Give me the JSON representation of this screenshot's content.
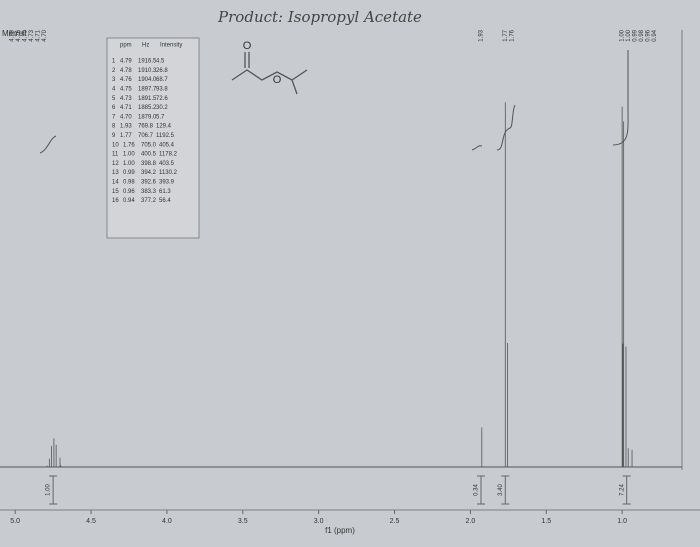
{
  "chart_data": {
    "type": "spectrum",
    "title": "Product: Isopropyl Acetate",
    "sample_label": "Merrell",
    "x_label": "f1 (ppm)",
    "xlim": [
      5.1,
      0.5
    ],
    "ylim": [
      0,
      1200
    ],
    "xticks": [
      {
        "value": 5,
        "label": "5.0"
      },
      4.5,
      {
        "value": 4,
        "label": "4.0"
      },
      3.5,
      {
        "value": 3,
        "label": "3.0"
      },
      2.5,
      {
        "value": 2,
        "label": "2.0"
      },
      1.5,
      {
        "value": 1,
        "label": "1.0"
      }
    ],
    "color": "#555555",
    "x": [
      4.79,
      4.78,
      4.76,
      4.75,
      4.73,
      4.71,
      4.7,
      1.93,
      1.77,
      1.76,
      1.0,
      1.0,
      0.99,
      0.98,
      0.96,
      0.94
    ],
    "values": [
      4.5,
      26.8,
      68.7,
      93.8,
      72.6,
      30.2,
      5.7,
      129.4,
      1192.5,
      405.4,
      1178.2,
      403.5,
      1130.2,
      393.9,
      61.3,
      56.4
    ],
    "peak_labels": [
      {
        "labels": [
          "4.79",
          "4.76",
          "4.75",
          "4.73",
          "4.71",
          "4.70"
        ]
      },
      {
        "labels": [
          "1.93"
        ]
      },
      {
        "labels": [
          "1.77",
          "1.76"
        ]
      },
      {
        "labels": [
          "1.00",
          "1.00",
          "0.99",
          "0.98",
          "0.96",
          "0.94"
        ]
      }
    ],
    "integrals": [
      {
        "label": "1.00",
        "at": 4.75
      },
      {
        "label": "0.34",
        "at": 1.93
      },
      {
        "label": "3.40",
        "at": 1.77
      },
      {
        "label": "7.24",
        "at": 0.97
      }
    ],
    "peak_table": {
      "columns": [
        "ppm",
        "Hz",
        "Intensity"
      ],
      "rows": [
        [
          "1",
          "4.79",
          "1916.5",
          "4.5"
        ],
        [
          "2",
          "4.78",
          "1910.3",
          "26.8"
        ],
        [
          "3",
          "4.76",
          "1904.0",
          "68.7"
        ],
        [
          "4",
          "4.75",
          "1897.7",
          "93.8"
        ],
        [
          "5",
          "4.73",
          "1891.5",
          "72.6"
        ],
        [
          "6",
          "4.71",
          "1885.2",
          "30.2"
        ],
        [
          "7",
          "4.70",
          "1879.0",
          "5.7"
        ],
        [
          "8",
          "1.93",
          "769.8",
          "129.4"
        ],
        [
          "9",
          "1.77",
          "706.7",
          "1192.5"
        ],
        [
          "10",
          "1.76",
          "705.0",
          "405.4"
        ],
        [
          "11",
          "1.00",
          "400.5",
          "1178.2"
        ],
        [
          "12",
          "1.00",
          "398.8",
          "403.5"
        ],
        [
          "13",
          "0.99",
          "394.2",
          "1130.2"
        ],
        [
          "14",
          "0.98",
          "392.6",
          "393.9"
        ],
        [
          "15",
          "0.96",
          "383.3",
          "61.3"
        ],
        [
          "16",
          "0.94",
          "377.2",
          "56.4"
        ]
      ]
    },
    "structure": {
      "atoms": [
        "O",
        "O"
      ]
    }
  }
}
